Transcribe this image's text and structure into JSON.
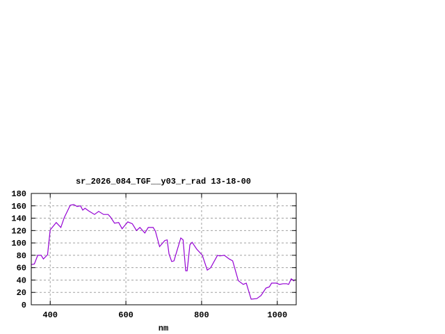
{
  "chart_data": {
    "type": "line",
    "title": "sr_2026_084_TGF__y03_r_rad 13-18-00",
    "xlabel": "nm",
    "ylabel": "",
    "xlim": [
      350,
      1050
    ],
    "ylim": [
      0,
      180
    ],
    "xticks": [
      400,
      600,
      800,
      1000
    ],
    "yticks": [
      0,
      20,
      40,
      60,
      80,
      100,
      120,
      140,
      160,
      180
    ],
    "grid": true,
    "line_color": "#9400d3",
    "series": [
      {
        "x": [
          351,
          358,
          367,
          376,
          382,
          393,
          400,
          416,
          428,
          437,
          453,
          462,
          471,
          480,
          486,
          492,
          501,
          517,
          528,
          541,
          553,
          559,
          570,
          581,
          590,
          605,
          617,
          628,
          637,
          650,
          659,
          672,
          678,
          689,
          703,
          709,
          714,
          721,
          727,
          745,
          751,
          758,
          762,
          769,
          775,
          787,
          796,
          802,
          815,
          824,
          842,
          848,
          860,
          873,
          882,
          897,
          910,
          918,
          931,
          946,
          957,
          970,
          979,
          985,
          997,
          1006,
          1015,
          1025,
          1030,
          1037,
          1045
        ],
        "y": [
          65,
          66,
          80,
          80,
          74,
          81,
          121,
          133,
          125,
          141,
          161,
          162,
          159,
          160,
          153,
          156,
          152,
          146,
          151,
          146,
          146,
          142,
          132,
          133,
          123,
          134,
          131,
          120,
          125,
          116,
          125,
          125,
          119,
          94,
          104,
          105,
          82,
          70,
          71,
          108,
          105,
          55,
          55,
          97,
          101,
          90,
          84,
          80,
          56,
          60,
          80,
          79,
          80,
          74,
          71,
          39,
          33,
          35,
          9,
          10,
          15,
          27,
          29,
          35,
          35,
          33,
          34,
          34,
          33,
          42,
          38
        ]
      }
    ]
  }
}
